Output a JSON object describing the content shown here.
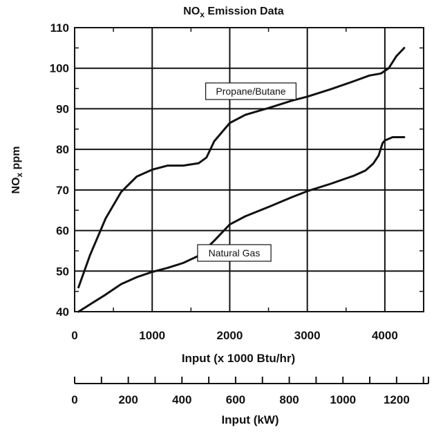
{
  "chart_data": {
    "type": "line",
    "title": "NOx Emission Data",
    "title_main": "NO",
    "title_sub": "x",
    "title_rest": " Emission Data",
    "xlabel": "Input (x 1000 Btu/hr)",
    "ylabel": "NOx ppm",
    "ylabel_main": "NO",
    "ylabel_sub": "x",
    "ylabel_rest": " ppm",
    "xlim": [
      0,
      4500
    ],
    "ylim": [
      40,
      110
    ],
    "x_ticks": [
      "0",
      "1000",
      "2000",
      "3000",
      "4000"
    ],
    "y_ticks": [
      "40",
      "50",
      "60",
      "70",
      "80",
      "90",
      "100",
      "110"
    ],
    "grid": true,
    "secondary_axis": {
      "label": "Input (kW)",
      "ticks": [
        "0",
        "200",
        "400",
        "600",
        "800",
        "1000",
        "1200"
      ],
      "xlim": [
        0,
        1318.8
      ]
    },
    "series": [
      {
        "name": "Propane/Butane",
        "x": [
          50,
          200,
          400,
          600,
          800,
          1000,
          1200,
          1400,
          1600,
          1700,
          1800,
          2000,
          2200,
          2500,
          2800,
          3000,
          3300,
          3600,
          3800,
          3950,
          4050,
          4150,
          4250
        ],
        "y": [
          46,
          54,
          63,
          69.5,
          73.3,
          75,
          76,
          76,
          76.6,
          78,
          82,
          86.5,
          88.5,
          90.2,
          92,
          93,
          94.8,
          96.8,
          98.2,
          98.7,
          100,
          103,
          105
        ]
      },
      {
        "name": "Natural Gas",
        "x": [
          50,
          200,
          400,
          600,
          800,
          1000,
          1200,
          1400,
          1600,
          1800,
          2000,
          2200,
          2500,
          2800,
          3000,
          3300,
          3600,
          3750,
          3850,
          3920,
          3970,
          4000,
          4100,
          4250
        ],
        "y": [
          40,
          41.8,
          44.2,
          46.8,
          48.5,
          49.8,
          50.8,
          52,
          53.8,
          57.5,
          61.5,
          63.5,
          65.8,
          68.2,
          69.7,
          71.5,
          73.5,
          74.8,
          76.5,
          78.5,
          81.5,
          82.2,
          83,
          83
        ]
      }
    ]
  }
}
